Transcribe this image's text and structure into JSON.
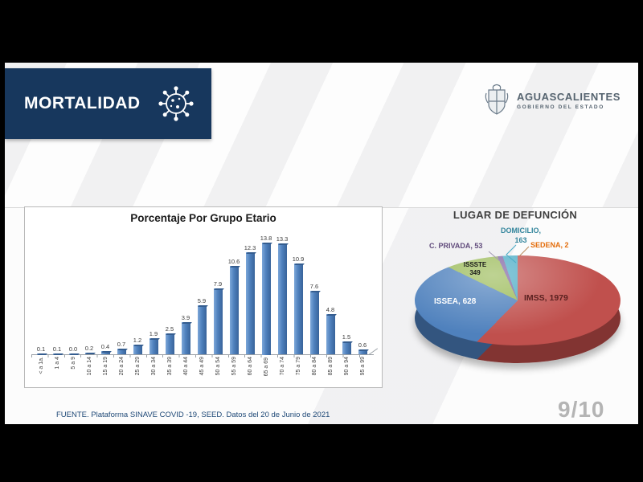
{
  "header": {
    "title": "MORTALIDAD"
  },
  "logo": {
    "name": "AGUASCALIENTES",
    "subtitle": "GOBIERNO DEL ESTADO"
  },
  "colors": {
    "header_navy": "#17375d",
    "bar_blue": "#4f81bd",
    "footer_blue": "#1f4977"
  },
  "chart_data": [
    {
      "type": "bar",
      "title": "Porcentaje Por Grupo Etario",
      "xlabel": "",
      "ylabel": "",
      "ylim": [
        0,
        14.5
      ],
      "grid": false,
      "legend": false,
      "data_labels": true,
      "bar_color": "#4f81bd",
      "categories": [
        "< a 1a.",
        "1 a 4",
        "5 a 9",
        "10 a 14",
        "15 a 19",
        "20 a 24",
        "25 a 29",
        "30 a 34",
        "35 a 39",
        "40 a 44",
        "45 a 49",
        "50 a 54",
        "55 a 59",
        "60 a 64",
        "65 a 69",
        "70 a 74",
        "75 a 79",
        "80 a 84",
        "85 a 89",
        "90 a 94",
        "95 a 99"
      ],
      "values": [
        0.1,
        0.1,
        0.0,
        0.2,
        0.4,
        0.7,
        1.2,
        1.9,
        2.5,
        3.9,
        5.9,
        7.9,
        10.6,
        12.3,
        13.8,
        13.3,
        10.9,
        7.6,
        4.8,
        1.5,
        0.6
      ]
    },
    {
      "type": "pie",
      "title": "LUGAR DE DEFUNCIÓN",
      "effect": "3d",
      "legend": false,
      "start_angle_deg": 0,
      "direction": "clockwise",
      "slices": [
        {
          "label": "IMSS",
          "value": 1979,
          "color": "#c0504d"
        },
        {
          "label": "ISSEA",
          "value": 628,
          "color": "#4f81bd"
        },
        {
          "label": "ISSSTE",
          "value": 349,
          "color": "#9bbb59"
        },
        {
          "label": "C. PRIVADA",
          "value": 53,
          "color": "#8064a2"
        },
        {
          "label": "DOMICILIO",
          "value": 163,
          "color": "#4bacc6"
        },
        {
          "label": "SEDENA",
          "value": 2,
          "color": "#f79646"
        }
      ]
    }
  ],
  "pie_callouts": {
    "imss": {
      "text": "IMSS, 1979",
      "color": "#5a2120"
    },
    "issea": {
      "text": "ISSEA, 628",
      "color": "#ffffff"
    },
    "issste": {
      "line1": "ISSSTE",
      "line2": "349",
      "color": "#1a1a1a"
    },
    "cprivada": {
      "text": "C. PRIVADA, 53",
      "color": "#604a7b"
    },
    "domicilio": {
      "line1": "DOMICILIO,",
      "line2": "163",
      "color": "#31849b"
    },
    "sedena": {
      "text": "SEDENA, 2",
      "color": "#e36c0a"
    }
  },
  "footer": {
    "source": "FUENTE. Plataforma SINAVE COVID -19, SEED. Datos del 20 de Junio de 2021",
    "page": "9/10"
  }
}
